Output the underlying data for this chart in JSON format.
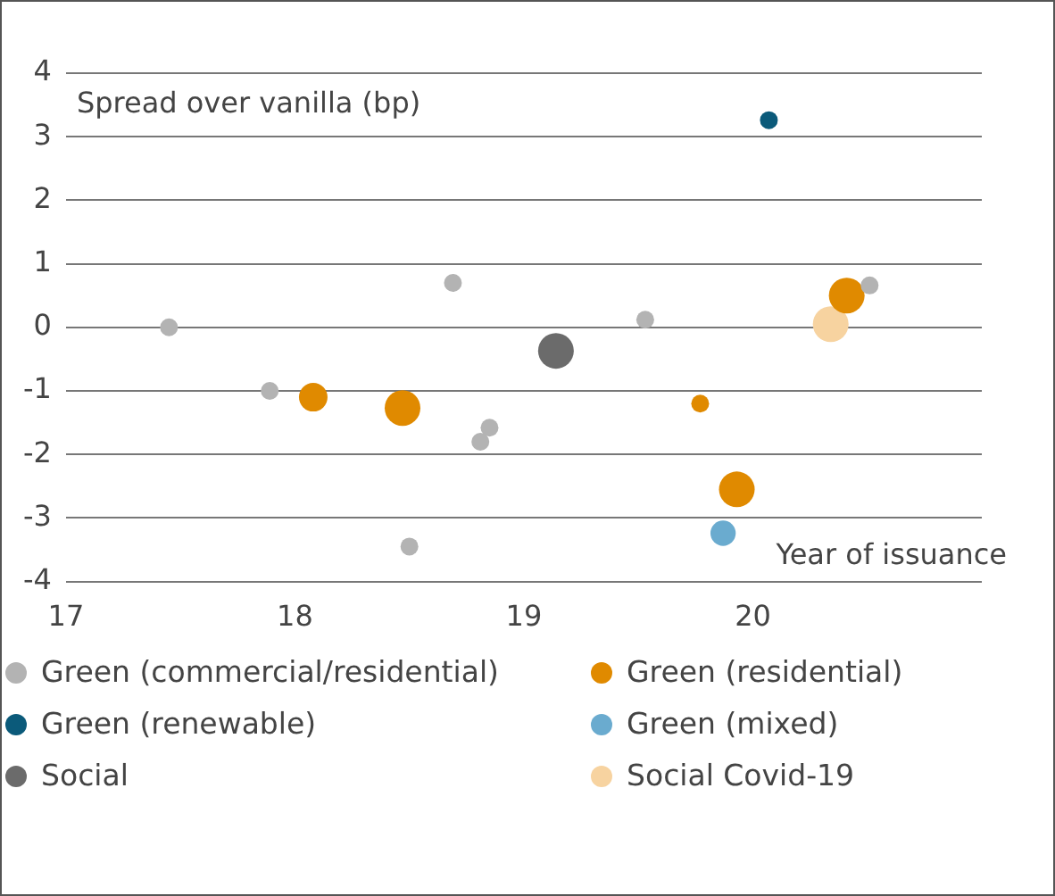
{
  "chart_data": {
    "type": "bubble",
    "xlabel": "Year of issuance",
    "ylabel": "Spread over vanilla (bp)",
    "xlim": [
      17,
      21
    ],
    "xticks": [
      17,
      18,
      19,
      20
    ],
    "ylim": [
      -4,
      4
    ],
    "yticks": [
      -4,
      -3,
      -2,
      -1,
      0,
      1,
      2,
      3,
      4
    ],
    "grid": "y",
    "legend": "bottom",
    "series": [
      {
        "name": "Green (commercial/residential)",
        "color": "#b3b3b3",
        "x": [
          17.45,
          17.89,
          18.69,
          18.5,
          18.81,
          18.85,
          19.53,
          20.51
        ],
        "values": [
          0,
          -1,
          0.7,
          -3.45,
          -1.8,
          -1.58,
          0.12,
          0.66
        ],
        "sizes": [
          0.25,
          0.25,
          0.25,
          0.25,
          0.25,
          0.25,
          0.25,
          0.25
        ]
      },
      {
        "name": "Green (residential)",
        "color": "#e08a00",
        "x": [
          18.08,
          18.47,
          19.77,
          19.93,
          20.41
        ],
        "values": [
          -1.1,
          -1.27,
          -1.2,
          -2.55,
          0.5
        ],
        "sizes": [
          0.64,
          1,
          0.25,
          1,
          1
        ]
      },
      {
        "name": "Green (renewable)",
        "color": "#0b5a7a",
        "x": [
          20.07
        ],
        "values": [
          3.26
        ],
        "sizes": [
          0.25
        ]
      },
      {
        "name": "Green (mixed)",
        "color": "#6aabcf",
        "x": [
          19.87
        ],
        "values": [
          -3.24
        ],
        "sizes": [
          0.5
        ]
      },
      {
        "name": "Social",
        "color": "#6b6b6b",
        "x": [
          19.14
        ],
        "values": [
          -0.37
        ],
        "sizes": [
          1
        ]
      },
      {
        "name": "Social Covid-19",
        "color": "#f7d3a0",
        "x": [
          20.34
        ],
        "values": [
          0.05
        ],
        "sizes": [
          1
        ]
      }
    ]
  }
}
